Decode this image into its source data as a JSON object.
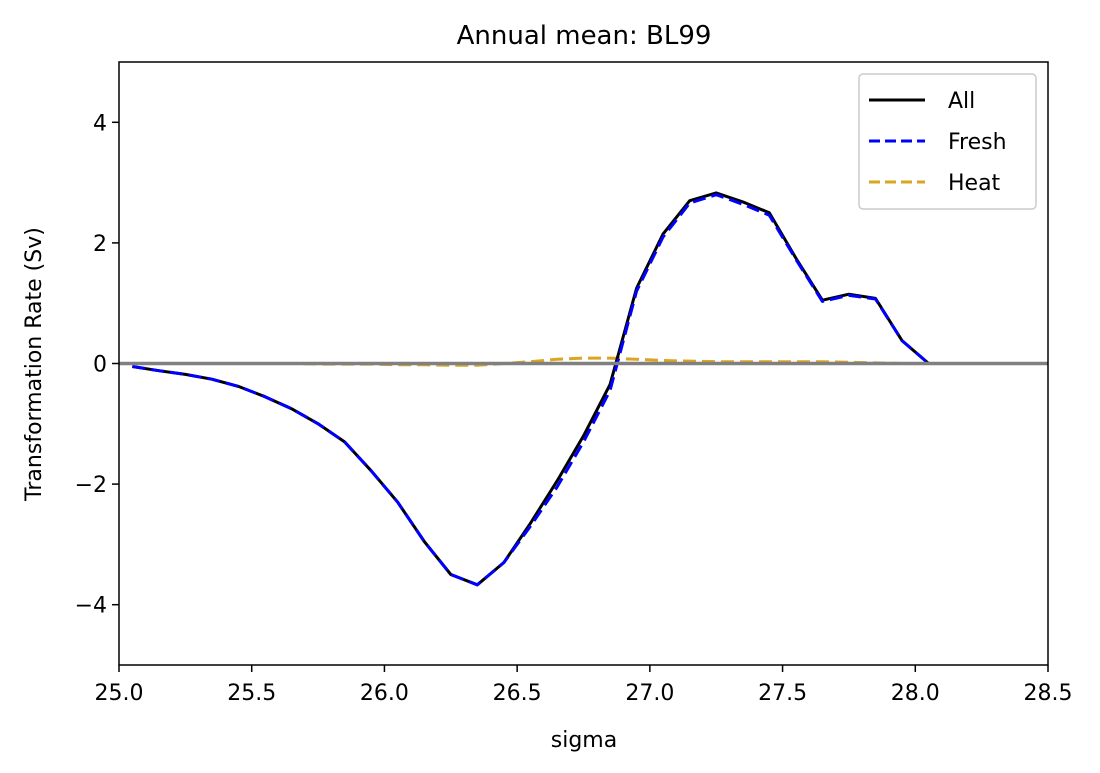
{
  "chart_data": {
    "type": "line",
    "title": "Annual mean: BL99",
    "xlabel": "sigma",
    "ylabel": "Transformation Rate (Sv)",
    "xlim": [
      25.0,
      28.5
    ],
    "ylim": [
      -5,
      5
    ],
    "xticks": [
      "25.0",
      "25.5",
      "26.0",
      "26.5",
      "27.0",
      "27.5",
      "28.0",
      "28.5"
    ],
    "yticks": [
      "−4",
      "−2",
      "0",
      "2",
      "4"
    ],
    "xtick_values": [
      25.0,
      25.5,
      26.0,
      26.5,
      27.0,
      27.5,
      28.0,
      28.5
    ],
    "ytick_values": [
      -4,
      -2,
      0,
      2,
      4
    ],
    "grid": false,
    "legend_position": "top-right",
    "zero_line": {
      "y": 0,
      "color": "#808080"
    },
    "x": [
      25.05,
      25.15,
      25.25,
      25.35,
      25.45,
      25.55,
      25.65,
      25.75,
      25.85,
      25.95,
      26.05,
      26.15,
      26.25,
      26.35,
      26.45,
      26.55,
      26.65,
      26.75,
      26.85,
      26.95,
      27.05,
      27.15,
      27.25,
      27.35,
      27.45,
      27.55,
      27.65,
      27.75,
      27.85,
      27.95,
      28.05,
      28.15,
      28.25,
      28.35,
      28.45
    ],
    "series": [
      {
        "name": "All",
        "color": "#000000",
        "style": "solid",
        "values": [
          -0.05,
          -0.12,
          -0.18,
          -0.26,
          -0.38,
          -0.55,
          -0.75,
          -1.0,
          -1.3,
          -1.78,
          -2.3,
          -2.95,
          -3.5,
          -3.67,
          -3.3,
          -2.65,
          -1.95,
          -1.2,
          -0.35,
          1.25,
          2.15,
          2.7,
          2.83,
          2.68,
          2.5,
          1.75,
          1.05,
          1.15,
          1.08,
          0.38,
          0.0,
          0.0,
          0.0,
          0.0,
          0.0
        ]
      },
      {
        "name": "Fresh",
        "color": "#0000ff",
        "style": "dashed",
        "values": [
          -0.05,
          -0.12,
          -0.18,
          -0.26,
          -0.38,
          -0.55,
          -0.75,
          -1.0,
          -1.3,
          -1.78,
          -2.3,
          -2.95,
          -3.5,
          -3.67,
          -3.3,
          -2.7,
          -2.05,
          -1.3,
          -0.45,
          1.2,
          2.1,
          2.66,
          2.8,
          2.64,
          2.46,
          1.73,
          1.03,
          1.13,
          1.07,
          0.38,
          0.0,
          0.0,
          0.0,
          0.0,
          0.0
        ]
      },
      {
        "name": "Heat",
        "color": "#daa520",
        "style": "dashed",
        "values": [
          0.0,
          0.0,
          0.0,
          0.0,
          0.0,
          0.0,
          0.0,
          -0.01,
          -0.01,
          -0.01,
          -0.02,
          -0.02,
          -0.03,
          -0.03,
          0.0,
          0.03,
          0.07,
          0.09,
          0.09,
          0.07,
          0.05,
          0.04,
          0.03,
          0.03,
          0.03,
          0.03,
          0.03,
          0.02,
          0.01,
          0.0,
          0.0,
          0.0,
          0.0,
          0.0,
          0.0
        ]
      }
    ]
  }
}
